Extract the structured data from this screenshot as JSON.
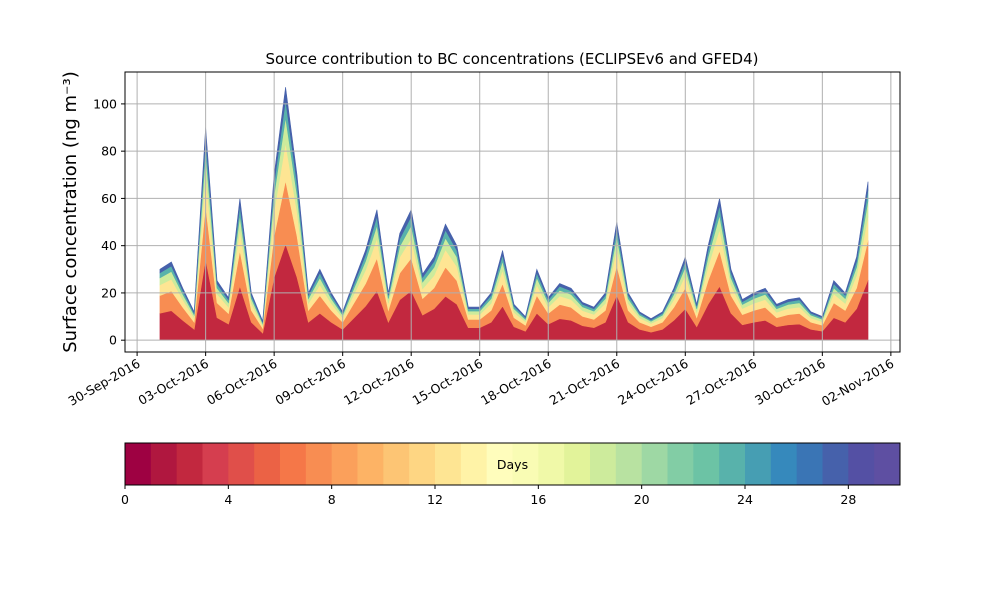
{
  "chart_data": {
    "type": "stacked_area",
    "title": "Source contribution to BC concentrations (ECLIPSEv6 and GFED4)",
    "y_label": "Surface concentration (ng m⁻³)",
    "xlim": [
      -0.53,
      33.4
    ],
    "xticks": [
      {
        "value": 0,
        "label": "30-Sep-2016"
      },
      {
        "value": 3,
        "label": "03-Oct-2016"
      },
      {
        "value": 6,
        "label": "06-Oct-2016"
      },
      {
        "value": 9,
        "label": "09-Oct-2016"
      },
      {
        "value": 12,
        "label": "12-Oct-2016"
      },
      {
        "value": 15,
        "label": "15-Oct-2016"
      },
      {
        "value": 18,
        "label": "18-Oct-2016"
      },
      {
        "value": 21,
        "label": "21-Oct-2016"
      },
      {
        "value": 24,
        "label": "24-Oct-2016"
      },
      {
        "value": 27,
        "label": "27-Oct-2016"
      },
      {
        "value": 30,
        "label": "30-Oct-2016"
      },
      {
        "value": 33,
        "label": "02-Nov-2016"
      }
    ],
    "ylim": [
      -5,
      113.5
    ],
    "yticks": [
      0,
      20,
      40,
      60,
      80,
      100
    ],
    "grid": true,
    "x": [
      1,
      1.5,
      2,
      2.5,
      3,
      3.5,
      4,
      4.5,
      5,
      5.5,
      6,
      6.5,
      7,
      7.5,
      8,
      8.5,
      9,
      9.5,
      10,
      10.5,
      11,
      11.5,
      12,
      12.5,
      13,
      13.5,
      14,
      14.5,
      15,
      15.5,
      16,
      16.5,
      17,
      17.5,
      18,
      18.5,
      19,
      19.5,
      20,
      20.5,
      21,
      21.5,
      22,
      22.5,
      23,
      23.5,
      24,
      24.5,
      25,
      25.5,
      26,
      26.5,
      27,
      27.5,
      28,
      28.5,
      29,
      29.5,
      30,
      30.5,
      31,
      31.5,
      32
    ],
    "series": [
      {
        "color": "#c2283f",
        "values": [
          11.4,
          12.5,
          8.4,
          4.6,
          34.2,
          9.5,
          6.8,
          22.8,
          7.6,
          3,
          26.6,
          40.7,
          26.6,
          7.6,
          11.4,
          7.6,
          4.6,
          9.5,
          14.4,
          20.9,
          7.6,
          17.1,
          20.9,
          10.6,
          13.3,
          18.6,
          15.2,
          5.3,
          5.3,
          7.6,
          14.4,
          5.7,
          3.8,
          11.4,
          6.8,
          9.1,
          8.4,
          6.1,
          5.3,
          7.6,
          19,
          7.6,
          4.6,
          3.4,
          4.6,
          8.4,
          13.3,
          5.7,
          15.2,
          22.8,
          11.4,
          6.5,
          7.6,
          8.4,
          5.7,
          6.5,
          6.8,
          4.6,
          3.8,
          9.5,
          7.6,
          13.3,
          25.5
        ]
      },
      {
        "color": "#f88d52",
        "values": [
          7.5,
          8.3,
          5.5,
          3,
          22.5,
          6.3,
          4.5,
          15,
          5,
          2,
          17.5,
          26.8,
          17.5,
          5,
          7.5,
          5,
          3,
          6.3,
          9.5,
          13.8,
          5,
          11.3,
          13.8,
          7,
          8.8,
          12.3,
          10,
          3.5,
          3.5,
          5,
          9.5,
          3.8,
          2.5,
          7.5,
          4.5,
          6,
          5.5,
          4,
          3.5,
          5,
          12.5,
          5,
          3,
          2.3,
          3,
          5.5,
          8.8,
          3.8,
          10,
          15,
          7.5,
          4.3,
          5,
          5.5,
          3.8,
          4.3,
          4.5,
          3,
          2.5,
          6.3,
          5,
          8.8,
          16.8
        ]
      },
      {
        "color": "#fee593",
        "values": [
          4.5,
          5,
          3.3,
          1.8,
          13.5,
          3.8,
          2.7,
          9,
          3,
          1.2,
          10.5,
          16,
          10.5,
          3,
          4.5,
          3,
          1.8,
          3.8,
          5.7,
          8.3,
          3,
          6.8,
          8.3,
          4.2,
          5.3,
          7.4,
          6,
          2.1,
          2.1,
          3,
          5.7,
          2.3,
          1.5,
          4.5,
          2.7,
          3.6,
          3.3,
          2.4,
          2.1,
          3,
          7.5,
          3,
          1.8,
          1.4,
          1.8,
          3.3,
          5.3,
          2.3,
          6,
          9,
          4.5,
          2.6,
          3,
          3.3,
          2.3,
          2.6,
          2.7,
          1.8,
          1.5,
          3.8,
          3,
          5.3,
          10
        ]
      },
      {
        "color": "#cdeb9c",
        "values": [
          3,
          3.3,
          2.2,
          1.2,
          9,
          2.5,
          1.8,
          6,
          2,
          0.8,
          7,
          10.7,
          7,
          2,
          3,
          2,
          1.2,
          2.5,
          3.8,
          5.5,
          2,
          4.5,
          5.5,
          2.8,
          3.5,
          4.9,
          4,
          1.4,
          1.4,
          2,
          3.8,
          1.5,
          1,
          3,
          1.8,
          2.4,
          2.2,
          1.6,
          1.4,
          2,
          5,
          2,
          1.2,
          0.9,
          1.2,
          2.2,
          3.5,
          1.5,
          4,
          6,
          3,
          1.7,
          2,
          2.2,
          1.5,
          1.7,
          1.8,
          1.2,
          1,
          2.5,
          2,
          3.5,
          6.7
        ]
      },
      {
        "color": "#58b2ab",
        "values": [
          2.1,
          2.3,
          1.5,
          0.8,
          6.3,
          1.8,
          1.3,
          4.2,
          1.4,
          0.6,
          4.9,
          7.5,
          4.9,
          1.4,
          2.1,
          1.4,
          0.8,
          1.8,
          2.7,
          3.9,
          1.4,
          3.2,
          3.9,
          2,
          2.5,
          3.4,
          2.8,
          1,
          1,
          1.4,
          2.7,
          1.1,
          0.7,
          2.1,
          1.3,
          1.7,
          1.5,
          1.1,
          1,
          1.4,
          3.5,
          1.4,
          0.8,
          0.6,
          0.8,
          1.5,
          2.5,
          1.1,
          2.8,
          4.2,
          2.1,
          1.2,
          1.4,
          1.5,
          1.1,
          1.2,
          1.3,
          0.8,
          0.7,
          1.8,
          1.4,
          2.5,
          4.7
        ]
      },
      {
        "color": "#4661ab",
        "values": [
          1.5,
          1.7,
          1.1,
          0.6,
          4.5,
          1.3,
          0.9,
          3,
          1,
          0.4,
          3.5,
          5.4,
          3.5,
          1,
          1.5,
          1,
          0.6,
          1.3,
          1.9,
          2.8,
          1,
          2.3,
          2.8,
          1.4,
          1.8,
          2.5,
          2,
          0.7,
          0.7,
          1,
          1.9,
          0.8,
          0.5,
          1.5,
          0.9,
          1.2,
          1.1,
          0.8,
          0.7,
          1,
          2.5,
          1,
          0.6,
          0.5,
          0.6,
          1.1,
          1.8,
          0.8,
          2,
          3,
          1.5,
          0.9,
          1,
          1.1,
          0.8,
          0.9,
          0.9,
          0.6,
          0.5,
          1.3,
          1,
          1.8,
          3.4
        ]
      }
    ],
    "colorbar": {
      "label": "Days",
      "lim": [
        0,
        30
      ],
      "ticks": [
        0,
        4,
        8,
        12,
        16,
        20,
        24,
        28
      ],
      "colors": [
        "#9e0142",
        "#b0173f",
        "#c2283f",
        "#d53e4f",
        "#e04f4a",
        "#eb6245",
        "#f57748",
        "#f88d52",
        "#fba05b",
        "#fdb365",
        "#fdc574",
        "#fed683",
        "#fee593",
        "#fff3a7",
        "#fffdbc",
        "#f9fcb4",
        "#f0f9a8",
        "#e2f39a",
        "#cdeb9c",
        "#b8e2a1",
        "#9ed8a4",
        "#82cda5",
        "#6cc3a5",
        "#58b2ab",
        "#469eb3",
        "#3689bc",
        "#3a75b5",
        "#4661ab",
        "#5450a4",
        "#5e4fa2"
      ]
    }
  }
}
